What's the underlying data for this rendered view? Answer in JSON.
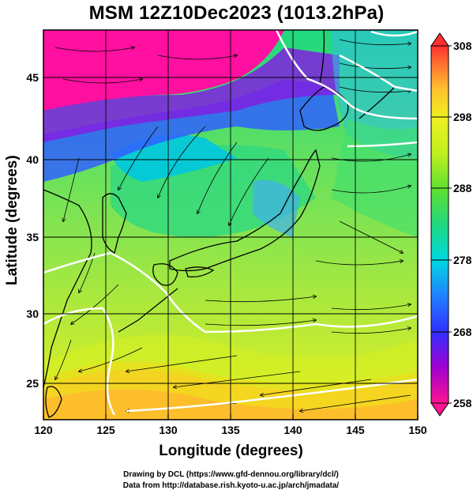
{
  "title": "MSM 12Z10Dec2023 (1013.2hPa)",
  "map": {
    "xlabel": "Longitude (degrees)",
    "ylabel": "Latitude  (degrees)",
    "x_ticks": [
      "120",
      "125",
      "130",
      "135",
      "140",
      "145",
      "150"
    ],
    "y_ticks": [
      "25",
      "30",
      "35",
      "40",
      "45"
    ],
    "lon_range": [
      120,
      150
    ],
    "lat_range": [
      22.5,
      47.8
    ],
    "grid": true,
    "streamlines": true,
    "field": "temperature (K) at 1013.2hPa"
  },
  "colorbar": {
    "tick_labels": [
      "308",
      "298",
      "288",
      "278",
      "268",
      "258"
    ],
    "range": [
      258,
      308
    ],
    "colors": [
      "#ff1493",
      "#a000d0",
      "#3030ff",
      "#2080ff",
      "#00d8e0",
      "#20d880",
      "#60e030",
      "#c0f020",
      "#f0f020",
      "#ffc030",
      "#ff7030",
      "#ff3030"
    ]
  },
  "credits": {
    "line1": "Drawing by DCL (https://www.gfd-dennou.org/library/dcl/)",
    "line2": "Data from http://database.rish.kyoto-u.ac.jp/arch/jmadata/"
  }
}
